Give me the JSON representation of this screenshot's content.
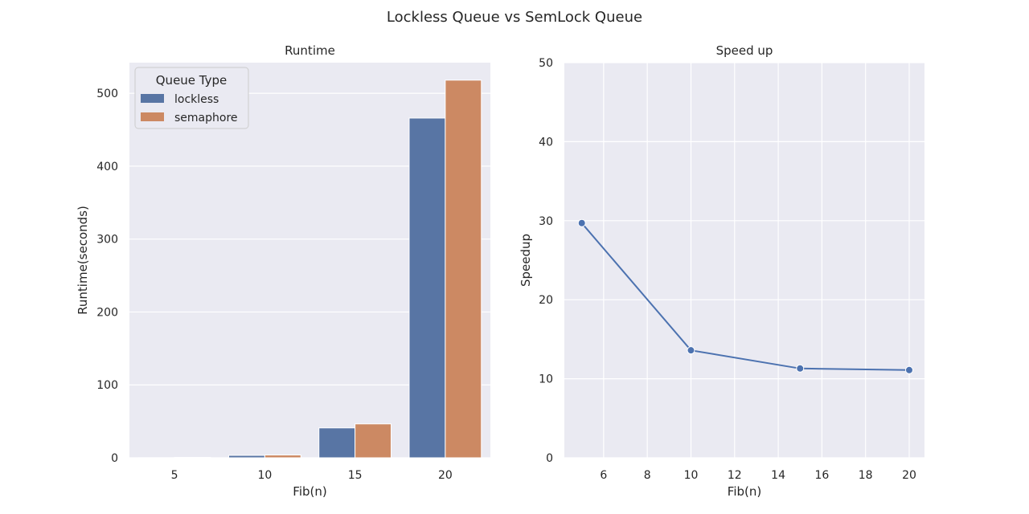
{
  "figure": {
    "title": "Lockless Queue vs SemLock Queue"
  },
  "chart_data": [
    {
      "type": "bar",
      "title": "Runtime",
      "xlabel": "Fib(n)",
      "ylabel": "Runtime(seconds)",
      "categories": [
        "5",
        "10",
        "15",
        "20"
      ],
      "ylim": [
        0,
        542
      ],
      "yticks": [
        0,
        100,
        200,
        300,
        400,
        500
      ],
      "grid": true,
      "legend": {
        "title": "Queue Type",
        "placement": "top-left"
      },
      "series": [
        {
          "name": "lockless",
          "color": "#5875a4",
          "values": [
            0.1,
            3.3,
            41,
            466
          ]
        },
        {
          "name": "semaphore",
          "color": "#cc8963",
          "values": [
            0.5,
            3.8,
            46.5,
            518
          ]
        }
      ]
    },
    {
      "type": "line",
      "title": "Speed up",
      "xlabel": "Fib(n)",
      "ylabel": "Speedup",
      "xlim": [
        4.2,
        20.7
      ],
      "ylim": [
        0,
        50
      ],
      "xticks": [
        6,
        8,
        10,
        12,
        14,
        16,
        18,
        20
      ],
      "yticks": [
        0,
        10,
        20,
        30,
        40,
        50
      ],
      "grid": true,
      "series": [
        {
          "color": "#4c72b0",
          "x": [
            5,
            10,
            15,
            20
          ],
          "y": [
            29.7,
            13.6,
            11.3,
            11.1
          ]
        }
      ]
    }
  ]
}
